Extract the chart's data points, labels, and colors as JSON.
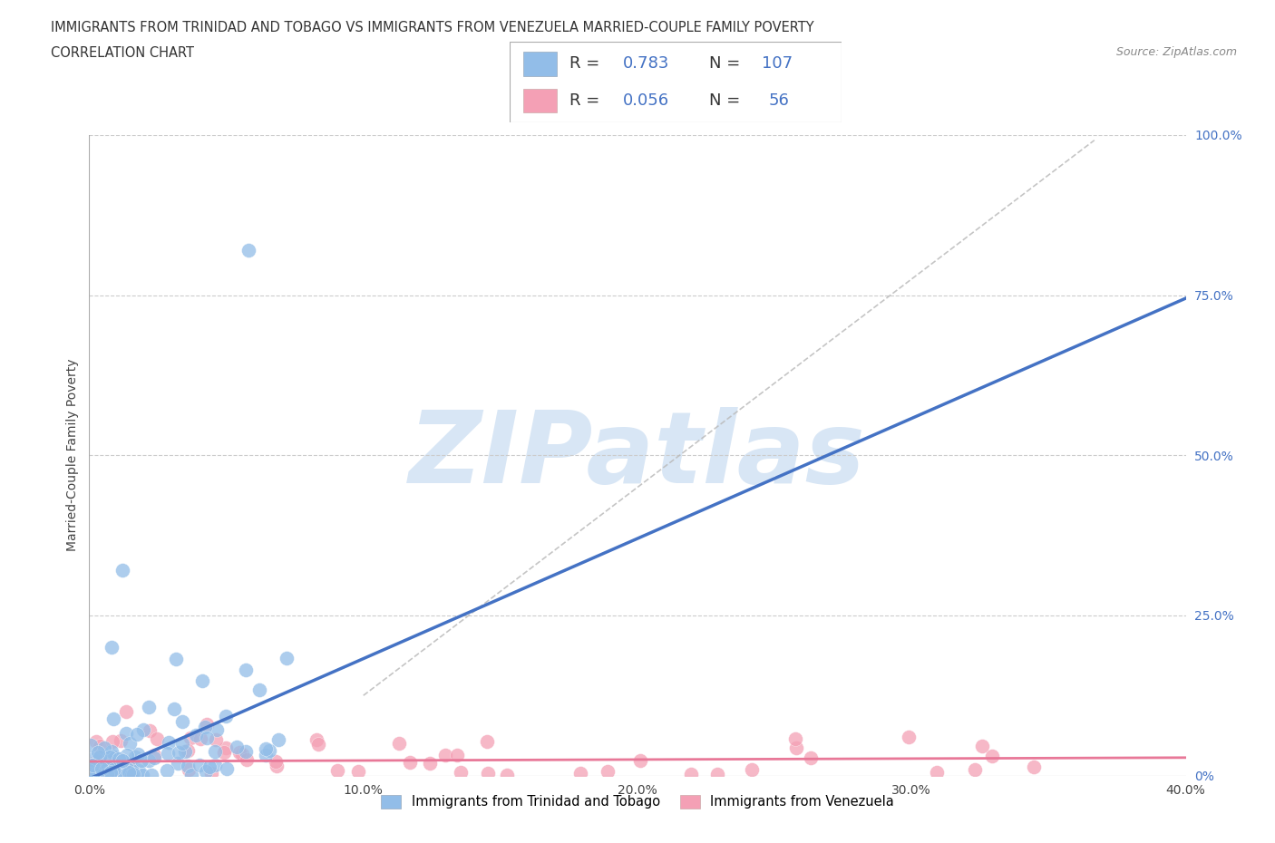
{
  "title_line1": "IMMIGRANTS FROM TRINIDAD AND TOBAGO VS IMMIGRANTS FROM VENEZUELA MARRIED-COUPLE FAMILY POVERTY",
  "title_line2": "CORRELATION CHART",
  "source_text": "Source: ZipAtlas.com",
  "ylabel": "Married-Couple Family Poverty",
  "xlim": [
    0.0,
    0.4
  ],
  "ylim": [
    0.0,
    1.0
  ],
  "xtick_labels": [
    "0.0%",
    "10.0%",
    "20.0%",
    "30.0%",
    "40.0%"
  ],
  "xtick_values": [
    0.0,
    0.1,
    0.2,
    0.3,
    0.4
  ],
  "ytick_right_labels": [
    "100.0%",
    "75.0%",
    "50.0%",
    "25.0%",
    "0%"
  ],
  "ytick_values": [
    1.0,
    0.75,
    0.5,
    0.25,
    0.0
  ],
  "blue_R": 0.783,
  "blue_N": 107,
  "pink_R": 0.056,
  "pink_N": 56,
  "blue_color": "#92BDE8",
  "pink_color": "#F4A0B5",
  "blue_line_color": "#4472C4",
  "pink_line_color": "#E87898",
  "ref_line_color": "#BBBBBB",
  "watermark_color": "#D8E6F5",
  "watermark_text": "ZIPatlas",
  "background_color": "#FFFFFF",
  "grid_color": "#CCCCCC",
  "legend_R_N_color": "#4472C4",
  "text_color": "#444444",
  "blue_line_slope": 1.875,
  "blue_line_intercept": -0.005,
  "pink_line_slope": 0.015,
  "pink_line_intercept": 0.022
}
